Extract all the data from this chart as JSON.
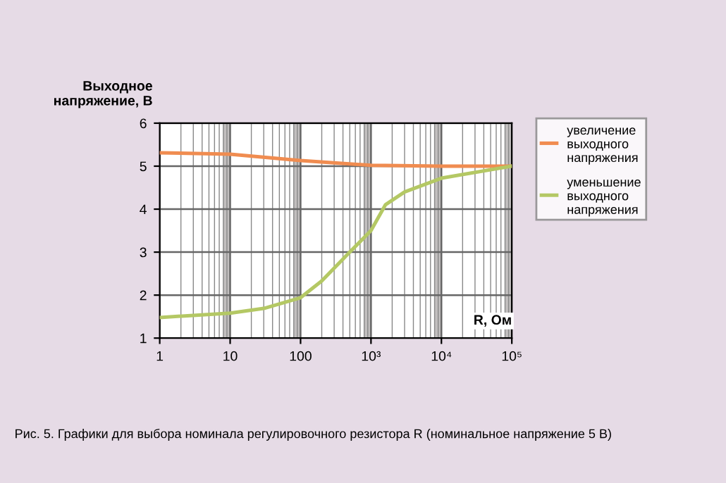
{
  "chart_data": {
    "type": "line",
    "ylabel": "Выходное\nнапряжение, В",
    "xlabel": "R, Ом",
    "log": "x",
    "xlim": [
      1,
      100000
    ],
    "ylim": [
      1,
      6
    ],
    "xticks": [
      1,
      10,
      100,
      {
        "value": 1000,
        "label": "10³"
      },
      {
        "value": 10000,
        "label": "10⁴"
      },
      {
        "value": 100000,
        "label": "10⁵"
      }
    ],
    "yticks": [
      1,
      2,
      3,
      4,
      5,
      6
    ],
    "grid": true,
    "legend": "right",
    "bands": [
      {
        "axis": "x",
        "from": 8,
        "to": 10,
        "color": "#9a9494"
      },
      {
        "axis": "x",
        "from": 80,
        "to": 100,
        "color": "#9a9494"
      },
      {
        "axis": "x",
        "from": 800,
        "to": 1000,
        "color": "#9a9494"
      },
      {
        "axis": "x",
        "from": 8000,
        "to": 10000,
        "color": "#9a9494"
      },
      {
        "axis": "x",
        "from": 80000,
        "to": 100000,
        "color": "#9a9494"
      }
    ],
    "series": [
      {
        "name": "увеличение выходного напряжения",
        "color": "#f08c50",
        "x": [
          1,
          10,
          100,
          1000,
          10000,
          100000
        ],
        "values": [
          5.31,
          5.28,
          5.13,
          5.02,
          5.0,
          5.0
        ]
      },
      {
        "name": "уменьшение выходного напряжения",
        "color": "#b4c864",
        "x": [
          1,
          10,
          30,
          100,
          200,
          500,
          1000,
          1600,
          3000,
          10000,
          100000
        ],
        "values": [
          1.48,
          1.58,
          1.69,
          1.94,
          2.33,
          3.0,
          3.5,
          4.1,
          4.4,
          4.72,
          5.0
        ]
      }
    ],
    "annotations": [
      "Рис. 5. Графики для выбора номинала регулировочного резистора R (номинальное напряжение 5 В)"
    ]
  }
}
